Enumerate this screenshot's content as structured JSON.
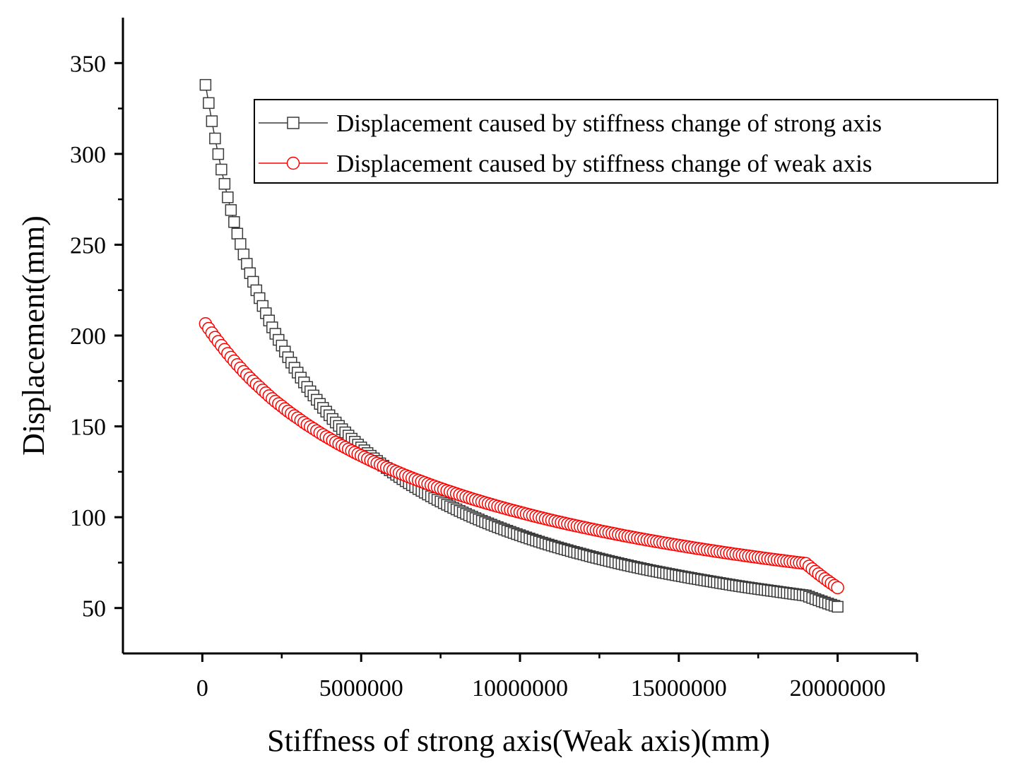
{
  "chart_data": {
    "type": "scatter",
    "title": "",
    "xlabel": "Stiffness of strong axis(Weak axis)(mm)",
    "ylabel": "Displacement(mm)",
    "xlim": [
      -2500000,
      22500000
    ],
    "ylim": [
      25,
      375
    ],
    "x_ticks": [
      0,
      5000000,
      10000000,
      15000000,
      20000000
    ],
    "x_tick_labels": [
      "0",
      "5000000",
      "10000000",
      "15000000",
      "20000000"
    ],
    "y_ticks": [
      50,
      100,
      150,
      200,
      250,
      300,
      350
    ],
    "y_tick_labels": [
      "50",
      "100",
      "150",
      "200",
      "250",
      "300",
      "350"
    ],
    "grid": false,
    "legend_position": "top-right",
    "series": [
      {
        "name": "Displacement caused by stiffness change of strong axis",
        "marker": "square",
        "color": "#3a3a3a",
        "x": [
          100000,
          200000,
          300000,
          400000,
          500000,
          600000,
          700000,
          800000,
          900000,
          1000000,
          1200000,
          1400000,
          1600000,
          1800000,
          2000000,
          2500000,
          3000000,
          3500000,
          4000000,
          4500000,
          5000000,
          6000000,
          7000000,
          8000000,
          9000000,
          10000000,
          11000000,
          12000000,
          13000000,
          14000000,
          15000000,
          16000000,
          17000000,
          18000000,
          19000000,
          20000000
        ],
        "y": [
          338,
          328,
          318,
          308.5,
          299.9,
          291.4,
          283.5,
          276.1,
          269.1,
          262.5,
          250.4,
          239.5,
          229.6,
          220.6,
          212.3,
          194.5,
          179.6,
          167.0,
          156.1,
          146.7,
          138.4,
          124.6,
          113.5,
          104.3,
          96.6,
          90.1,
          84.4,
          79.5,
          75.1,
          71.2,
          67.8,
          64.7,
          61.8,
          59.3,
          56.9,
          50.7
        ]
      },
      {
        "name": "Displacement caused by stiffness change of weak axis",
        "marker": "circle",
        "color": "#ff0000",
        "x": [
          100000,
          200000,
          300000,
          400000,
          500000,
          600000,
          700000,
          800000,
          900000,
          1000000,
          1200000,
          1400000,
          1600000,
          1800000,
          2000000,
          2500000,
          3000000,
          3500000,
          4000000,
          4500000,
          5000000,
          6000000,
          7000000,
          8000000,
          9000000,
          10000000,
          11000000,
          12000000,
          13000000,
          14000000,
          15000000,
          16000000,
          17000000,
          18000000,
          19000000,
          20000000
        ],
        "y": [
          206.5,
          203.9,
          201.4,
          199.0,
          196.7,
          194.5,
          192.3,
          190.1,
          188.0,
          186.0,
          182.1,
          178.4,
          174.9,
          171.6,
          168.4,
          161.1,
          154.6,
          148.7,
          143.3,
          138.4,
          133.9,
          125.9,
          119.0,
          112.9,
          107.5,
          102.7,
          98.3,
          94.4,
          90.8,
          87.5,
          84.5,
          81.7,
          79.1,
          76.7,
          74.5,
          61.2
        ]
      }
    ]
  }
}
